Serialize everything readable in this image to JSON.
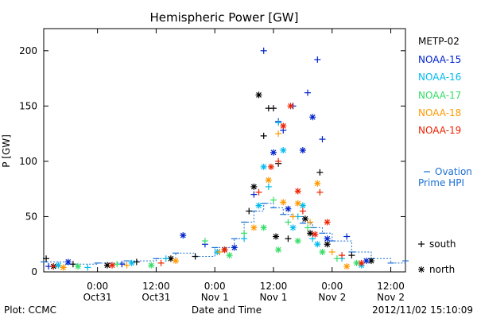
{
  "chart_data": {
    "type": "scatter",
    "title": "Hemispheric Power [GW]",
    "xlabel": "Date and Time",
    "ylabel": "P [GW]",
    "ylim": [
      0,
      220
    ],
    "y_ticks": [
      0,
      50,
      100,
      150,
      200
    ],
    "x_range": [
      "2012-10-30T13:00",
      "2012-11-02T15:00"
    ],
    "x_ticks": [
      {
        "t": "2012-10-31T00:00",
        "line1": "0:00",
        "line2": "Oct31"
      },
      {
        "t": "2012-10-31T12:00",
        "line1": "12:00",
        "line2": "Oct31"
      },
      {
        "t": "2012-11-01T00:00",
        "line1": "0:00",
        "line2": "Nov 1"
      },
      {
        "t": "2012-11-01T12:00",
        "line1": "12:00",
        "line2": "Nov 1"
      },
      {
        "t": "2012-11-02T00:00",
        "line1": "0:00",
        "line2": "Nov 2"
      },
      {
        "t": "2012-11-02T12:00",
        "line1": "12:00",
        "line2": "Nov 2"
      }
    ],
    "legend_placement": "right",
    "series": [
      {
        "name": "METP-02",
        "color": "#000000",
        "points": [
          [
            "2012-10-30T13:30",
            12,
            "s"
          ],
          [
            "2012-10-30T15:00",
            5,
            "n"
          ],
          [
            "2012-10-30T19:00",
            7,
            "s"
          ],
          [
            "2012-10-31T02:00",
            6,
            "n"
          ],
          [
            "2012-10-31T08:00",
            9,
            "s"
          ],
          [
            "2012-10-31T15:00",
            12,
            "n"
          ],
          [
            "2012-10-31T20:00",
            14,
            "s"
          ],
          [
            "2012-11-01T02:00",
            20,
            "n"
          ],
          [
            "2012-11-01T07:00",
            55,
            "s"
          ],
          [
            "2012-11-01T08:00",
            77,
            "n"
          ],
          [
            "2012-11-01T09:00",
            160,
            "n"
          ],
          [
            "2012-11-01T10:00",
            123,
            "s"
          ],
          [
            "2012-11-01T11:00",
            148,
            "s"
          ],
          [
            "2012-11-01T12:00",
            148,
            "s"
          ],
          [
            "2012-11-01T12:30",
            32,
            "n"
          ],
          [
            "2012-11-01T13:00",
            98,
            "s"
          ],
          [
            "2012-11-01T15:00",
            30,
            "s"
          ],
          [
            "2012-11-01T18:30",
            48,
            "n"
          ],
          [
            "2012-11-01T19:30",
            35,
            "n"
          ],
          [
            "2012-11-01T21:30",
            90,
            "s"
          ],
          [
            "2012-11-01T23:00",
            25,
            "n"
          ],
          [
            "2012-11-02T04:00",
            15,
            "s"
          ],
          [
            "2012-11-02T08:00",
            10,
            "n"
          ]
        ]
      },
      {
        "name": "NOAA-15",
        "color": "#0022cc",
        "points": [
          [
            "2012-10-30T14:00",
            5,
            "s"
          ],
          [
            "2012-10-30T18:00",
            9,
            "n"
          ],
          [
            "2012-10-31T05:00",
            7,
            "s"
          ],
          [
            "2012-10-31T17:30",
            33,
            "n"
          ],
          [
            "2012-10-31T22:00",
            25,
            "s"
          ],
          [
            "2012-11-01T04:00",
            22,
            "n"
          ],
          [
            "2012-11-01T08:00",
            70,
            "s"
          ],
          [
            "2012-11-01T10:00",
            200,
            "s"
          ],
          [
            "2012-11-01T12:00",
            108,
            "n"
          ],
          [
            "2012-11-01T13:00",
            136,
            "s"
          ],
          [
            "2012-11-01T14:00",
            128,
            "s"
          ],
          [
            "2012-11-01T15:00",
            57,
            "n"
          ],
          [
            "2012-11-01T16:00",
            150,
            "s"
          ],
          [
            "2012-11-01T18:00",
            110,
            "n"
          ],
          [
            "2012-11-01T19:00",
            162,
            "s"
          ],
          [
            "2012-11-01T20:00",
            140,
            "n"
          ],
          [
            "2012-11-01T21:00",
            192,
            "s"
          ],
          [
            "2012-11-01T22:00",
            120,
            "s"
          ],
          [
            "2012-11-01T23:00",
            30,
            "n"
          ],
          [
            "2012-11-02T03:00",
            32,
            "s"
          ],
          [
            "2012-11-02T07:00",
            10,
            "n"
          ]
        ]
      },
      {
        "name": "NOAA-16",
        "color": "#00bbee",
        "points": [
          [
            "2012-10-30T16:00",
            6,
            "n"
          ],
          [
            "2012-10-30T22:00",
            4,
            "s"
          ],
          [
            "2012-10-31T07:00",
            8,
            "n"
          ],
          [
            "2012-10-31T14:00",
            12,
            "s"
          ],
          [
            "2012-11-01T00:30",
            18,
            "n"
          ],
          [
            "2012-11-01T06:00",
            30,
            "s"
          ],
          [
            "2012-11-01T09:00",
            60,
            "n"
          ],
          [
            "2012-11-01T10:00",
            95,
            "n"
          ],
          [
            "2012-11-01T11:00",
            77,
            "s"
          ],
          [
            "2012-11-01T13:00",
            135,
            "s"
          ],
          [
            "2012-11-01T14:00",
            110,
            "n"
          ],
          [
            "2012-11-01T16:00",
            40,
            "n"
          ],
          [
            "2012-11-01T17:00",
            50,
            "s"
          ],
          [
            "2012-11-01T18:00",
            60,
            "n"
          ],
          [
            "2012-11-01T20:00",
            30,
            "s"
          ],
          [
            "2012-11-01T21:00",
            25,
            "n"
          ],
          [
            "2012-11-02T02:00",
            12,
            "s"
          ],
          [
            "2012-11-02T06:00",
            6,
            "n"
          ]
        ]
      },
      {
        "name": "NOAA-17",
        "color": "#33dd66",
        "points": [
          [
            "2012-10-30T20:00",
            5,
            "n"
          ],
          [
            "2012-10-31T04:00",
            7,
            "s"
          ],
          [
            "2012-10-31T11:00",
            6,
            "n"
          ],
          [
            "2012-10-31T22:00",
            28,
            "s"
          ],
          [
            "2012-11-01T03:00",
            15,
            "n"
          ],
          [
            "2012-11-01T06:00",
            35,
            "s"
          ],
          [
            "2012-11-01T10:00",
            40,
            "n"
          ],
          [
            "2012-11-01T12:00",
            65,
            "s"
          ],
          [
            "2012-11-01T13:00",
            20,
            "n"
          ],
          [
            "2012-11-01T15:00",
            45,
            "s"
          ],
          [
            "2012-11-01T17:00",
            28,
            "n"
          ],
          [
            "2012-11-01T19:00",
            40,
            "s"
          ],
          [
            "2012-11-01T22:00",
            18,
            "n"
          ],
          [
            "2012-11-02T01:00",
            12,
            "s"
          ],
          [
            "2012-11-02T05:00",
            8,
            "n"
          ]
        ]
      },
      {
        "name": "NOAA-18",
        "color": "#ff9900",
        "points": [
          [
            "2012-10-30T17:00",
            4,
            "n"
          ],
          [
            "2012-10-31T06:00",
            6,
            "s"
          ],
          [
            "2012-10-31T16:00",
            10,
            "n"
          ],
          [
            "2012-11-01T01:00",
            18,
            "s"
          ],
          [
            "2012-11-01T08:00",
            40,
            "n"
          ],
          [
            "2012-11-01T11:00",
            83,
            "n"
          ],
          [
            "2012-11-01T13:00",
            125,
            "s"
          ],
          [
            "2012-11-01T14:00",
            63,
            "n"
          ],
          [
            "2012-11-01T16:00",
            50,
            "s"
          ],
          [
            "2012-11-01T17:00",
            62,
            "n"
          ],
          [
            "2012-11-01T19:30",
            45,
            "s"
          ],
          [
            "2012-11-01T21:00",
            80,
            "n"
          ],
          [
            "2012-11-02T00:00",
            18,
            "s"
          ],
          [
            "2012-11-02T03:00",
            5,
            "n"
          ]
        ]
      },
      {
        "name": "NOAA-19",
        "color": "#ee2200",
        "points": [
          [
            "2012-10-30T15:00",
            5,
            "s"
          ],
          [
            "2012-10-31T03:00",
            6,
            "n"
          ],
          [
            "2012-10-31T13:00",
            8,
            "s"
          ],
          [
            "2012-11-01T02:00",
            20,
            "n"
          ],
          [
            "2012-11-01T09:00",
            72,
            "s"
          ],
          [
            "2012-11-01T11:30",
            95,
            "n"
          ],
          [
            "2012-11-01T13:00",
            100,
            "s"
          ],
          [
            "2012-11-01T14:00",
            132,
            "n"
          ],
          [
            "2012-11-01T15:30",
            150,
            "n"
          ],
          [
            "2012-11-01T17:00",
            73,
            "n"
          ],
          [
            "2012-11-01T18:00",
            55,
            "s"
          ],
          [
            "2012-11-01T20:30",
            34,
            "n"
          ],
          [
            "2012-11-01T21:30",
            72,
            "s"
          ],
          [
            "2012-11-01T23:00",
            45,
            "n"
          ],
          [
            "2012-11-02T02:00",
            15,
            "s"
          ],
          [
            "2012-11-02T06:00",
            8,
            "n"
          ]
        ]
      }
    ],
    "ovation_series": {
      "name": "Ovation Prime HPI",
      "color": "#1a6fd6",
      "points": [
        [
          "2012-10-30T13:00",
          9
        ],
        [
          "2012-10-30T18:00",
          7
        ],
        [
          "2012-10-31T00:00",
          8
        ],
        [
          "2012-10-31T06:00",
          10
        ],
        [
          "2012-10-31T12:00",
          12
        ],
        [
          "2012-10-31T16:00",
          17
        ],
        [
          "2012-10-31T20:00",
          14
        ],
        [
          "2012-11-01T00:00",
          22
        ],
        [
          "2012-11-01T04:00",
          30
        ],
        [
          "2012-11-01T06:00",
          45
        ],
        [
          "2012-11-01T08:00",
          55
        ],
        [
          "2012-11-01T10:00",
          62
        ],
        [
          "2012-11-01T12:00",
          58
        ],
        [
          "2012-11-01T14:00",
          52
        ],
        [
          "2012-11-01T16:00",
          50
        ],
        [
          "2012-11-01T18:00",
          44
        ],
        [
          "2012-11-01T20:00",
          40
        ],
        [
          "2012-11-01T22:00",
          35
        ],
        [
          "2012-11-02T00:00",
          28
        ],
        [
          "2012-11-02T04:00",
          18
        ],
        [
          "2012-11-02T08:00",
          12
        ],
        [
          "2012-11-02T12:00",
          8
        ],
        [
          "2012-11-02T15:00",
          10
        ]
      ]
    },
    "legend": {
      "series_labels": [
        "METP-02",
        "NOAA-15",
        "NOAA-16",
        "NOAA-17",
        "NOAA-18",
        "NOAA-19"
      ],
      "ovation_line1": "Ovation",
      "ovation_line2": "Prime HPI",
      "marker_plus_label": "south",
      "marker_star_label": "north"
    },
    "footer": {
      "left": "Plot: CCMC",
      "right": "2012/11/02 15:10:09"
    }
  }
}
